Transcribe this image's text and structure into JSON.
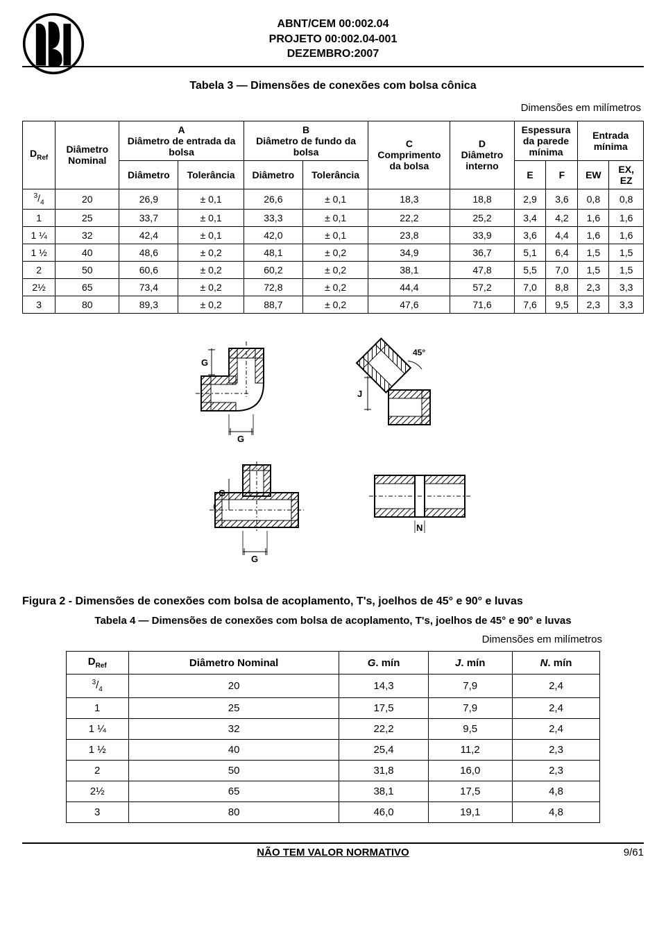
{
  "header": {
    "line1": "ABNT/CEM 00:002.04",
    "line2": "PROJETO 00:002.04-001",
    "line3": "DEZEMBRO:2007"
  },
  "table3": {
    "title": "Tabela 3 — Dimensões de conexões com bolsa cônica",
    "dim_note": "Dimensões em milímetros",
    "headers": {
      "dref_pre": "D",
      "dref_sub": "Ref",
      "dnom": "Diâmetro Nominal",
      "A_line1": "A",
      "A_line2": "Diâmetro de entrada da bolsa",
      "B_line1": "B",
      "B_line2": "Diâmetro de fundo da bolsa",
      "C_line1": "C",
      "C_line2": "Comprimento da bolsa",
      "D_line1": "D",
      "D_line2": "Diâmetro interno",
      "esp": "Espessura da parede mínima",
      "ent": "Entrada mínima",
      "diam": "Diâmetro",
      "tol": "Tolerância",
      "E": "E",
      "F": "F",
      "EW": "EW",
      "EXEZ": "EX, EZ"
    },
    "rows": [
      {
        "dref_num": "3",
        "dref_den": "4",
        "dref_plain": "",
        "dnom": "20",
        "ad": "26,9",
        "at": "± 0,1",
        "bd": "26,6",
        "bt": "± 0,1",
        "c": "18,3",
        "d": "18,8",
        "e": "2,9",
        "f": "3,6",
        "ew": "0,8",
        "ex": "0,8"
      },
      {
        "dref_plain": "1",
        "dnom": "25",
        "ad": "33,7",
        "at": "± 0,1",
        "bd": "33,3",
        "bt": "± 0,1",
        "c": "22,2",
        "d": "25,2",
        "e": "3,4",
        "f": "4,2",
        "ew": "1,6",
        "ex": "1,6"
      },
      {
        "dref_plain": "1 ¼",
        "dnom": "32",
        "ad": "42,4",
        "at": "± 0,1",
        "bd": "42,0",
        "bt": "± 0,1",
        "c": "23,8",
        "d": "33,9",
        "e": "3,6",
        "f": "4,4",
        "ew": "1,6",
        "ex": "1,6"
      },
      {
        "dref_plain": "1 ½",
        "dnom": "40",
        "ad": "48,6",
        "at": "± 0,2",
        "bd": "48,1",
        "bt": "± 0,2",
        "c": "34,9",
        "d": "36,7",
        "e": "5,1",
        "f": "6,4",
        "ew": "1,5",
        "ex": "1,5"
      },
      {
        "dref_plain": "2",
        "dnom": "50",
        "ad": "60,6",
        "at": "± 0,2",
        "bd": "60,2",
        "bt": "± 0,2",
        "c": "38,1",
        "d": "47,8",
        "e": "5,5",
        "f": "7,0",
        "ew": "1,5",
        "ex": "1,5"
      },
      {
        "dref_plain": "2½",
        "dnom": "65",
        "ad": "73,4",
        "at": "± 0,2",
        "bd": "72,8",
        "bt": "± 0,2",
        "c": "44,4",
        "d": "57,2",
        "e": "7,0",
        "f": "8,8",
        "ew": "2,3",
        "ex": "3,3"
      },
      {
        "dref_plain": "3",
        "dnom": "80",
        "ad": "89,3",
        "at": "± 0,2",
        "bd": "88,7",
        "bt": "± 0,2",
        "c": "47,6",
        "d": "71,6",
        "e": "7,6",
        "f": "9,5",
        "ew": "2,3",
        "ex": "3,3"
      }
    ]
  },
  "diagrams": {
    "labels": {
      "G": "G",
      "J": "J",
      "N": "N",
      "angle": "45°"
    }
  },
  "figure2": {
    "caption": "Figura 2 - Dimensões de conexões com bolsa de acoplamento, T's, joelhos de 45° e 90° e luvas"
  },
  "table4": {
    "title": "Tabela 4 — Dimensões de conexões com bolsa de acoplamento, T's, joelhos de 45° e 90° e luvas",
    "dim_note": "Dimensões em milímetros",
    "headers": {
      "dref_pre": "D",
      "dref_sub": "Ref",
      "dnom": "Diâmetro Nominal",
      "g": "G",
      "gmin": ". mín",
      "j": "J",
      "jmin": ". mín",
      "n": "N",
      "nmin": ". mín"
    },
    "rows": [
      {
        "dref_num": "3",
        "dref_den": "4",
        "dref_plain": "",
        "dnom": "20",
        "g": "14,3",
        "j": "7,9",
        "n": "2,4"
      },
      {
        "dref_plain": "1",
        "dnom": "25",
        "g": "17,5",
        "j": "7,9",
        "n": "2,4"
      },
      {
        "dref_plain": "1 ¼",
        "dnom": "32",
        "g": "22,2",
        "j": "9,5",
        "n": "2,4"
      },
      {
        "dref_plain": "1 ½",
        "dnom": "40",
        "g": "25,4",
        "j": "11,2",
        "n": "2,3"
      },
      {
        "dref_plain": "2",
        "dnom": "50",
        "g": "31,8",
        "j": "16,0",
        "n": "2,3"
      },
      {
        "dref_plain": "2½",
        "dnom": "65",
        "g": "38,1",
        "j": "17,5",
        "n": "4,8"
      },
      {
        "dref_plain": "3",
        "dnom": "80",
        "g": "46,0",
        "j": "19,1",
        "n": "4,8"
      }
    ]
  },
  "footer": {
    "center": "NÃO TEM VALOR NORMATIVO",
    "right": "9/61"
  }
}
